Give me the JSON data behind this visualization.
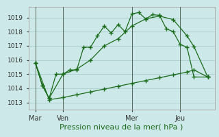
{
  "xlabel": "Pression niveau de la mer( hPa )",
  "bg_color": "#cce8e8",
  "grid_color": "#aacccc",
  "line_color": "#1a6b1a",
  "spine_color": "#aaaaaa",
  "ylim": [
    1012.5,
    1019.75
  ],
  "xlim": [
    -0.5,
    26.5
  ],
  "yticks": [
    1013,
    1014,
    1015,
    1016,
    1017,
    1018,
    1019
  ],
  "day_labels": [
    "Mar",
    "Ven",
    "Mer",
    "Jeu"
  ],
  "day_positions": [
    0.5,
    4.5,
    14.5,
    21.5
  ],
  "vline_positions": [
    0.5,
    4.5,
    14.5,
    21.5
  ],
  "series1_x": [
    0.5,
    1.5,
    2.5,
    3.5,
    4.5,
    5.5,
    6.5,
    7.5,
    8.5,
    9.5,
    10.5,
    11.5,
    12.5,
    13.5,
    14.5,
    15.5,
    16.5,
    17.5,
    18.5,
    19.5,
    20.5,
    21.5,
    22.5,
    23.5,
    25.5
  ],
  "series1_y": [
    1015.8,
    1014.2,
    1013.3,
    1015.0,
    1015.0,
    1015.3,
    1015.3,
    1016.9,
    1016.9,
    1017.7,
    1018.4,
    1017.9,
    1018.5,
    1018.0,
    1019.25,
    1019.35,
    1018.9,
    1019.2,
    1019.15,
    1018.2,
    1018.0,
    1017.1,
    1016.9,
    1014.8,
    1014.8
  ],
  "series2_x": [
    0.5,
    1.5,
    2.5,
    4.5,
    6.5,
    8.5,
    10.5,
    12.5,
    14.5,
    16.5,
    18.5,
    20.5,
    22.5,
    23.5,
    25.5
  ],
  "series2_y": [
    1015.8,
    1014.2,
    1013.3,
    1015.0,
    1015.35,
    1016.0,
    1017.0,
    1017.5,
    1018.4,
    1018.9,
    1019.1,
    1018.85,
    1017.7,
    1016.95,
    1014.8
  ],
  "series3_x": [
    0.5,
    2.5,
    4.5,
    6.5,
    8.5,
    10.5,
    12.5,
    14.5,
    16.5,
    18.5,
    20.5,
    22.5,
    23.5,
    25.5
  ],
  "series3_y": [
    1015.8,
    1013.2,
    1013.35,
    1013.55,
    1013.75,
    1013.95,
    1014.15,
    1014.35,
    1014.55,
    1014.75,
    1014.95,
    1015.15,
    1015.3,
    1014.8
  ],
  "xlabel_color": "#1a6b1a",
  "xlabel_fontsize": 8,
  "ytick_fontsize": 6.5,
  "xtick_fontsize": 7
}
